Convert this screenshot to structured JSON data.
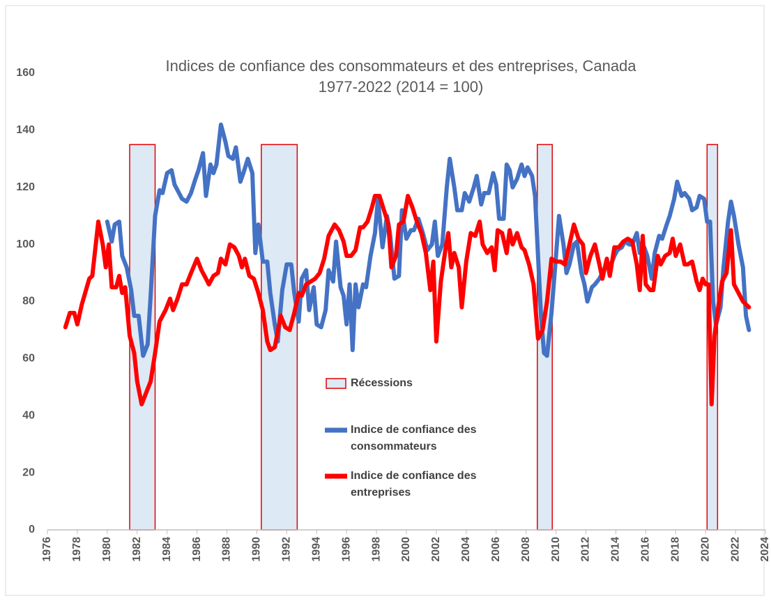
{
  "chart_data": {
    "type": "line",
    "title": "Indices de confiance des consommateurs et des entreprises, Canada",
    "subtitle": "1977-2022 (2014 = 100)",
    "xlim": [
      1976,
      2024
    ],
    "xticks": [
      1976,
      1978,
      1980,
      1982,
      1984,
      1986,
      1988,
      1990,
      1992,
      1994,
      1996,
      1998,
      2000,
      2002,
      2004,
      2006,
      2008,
      2010,
      2012,
      2014,
      2016,
      2018,
      2020,
      2022,
      2024
    ],
    "ylim": [
      0,
      160
    ],
    "yticks": [
      0,
      20,
      40,
      60,
      80,
      100,
      120,
      140,
      160
    ],
    "grid": false,
    "recessions": {
      "name": "Récessions",
      "color": "#e00000",
      "fill": "#dde9f5",
      "height": 135,
      "periods": [
        [
          1981.5,
          1983.2
        ],
        [
          1990.3,
          1992.7
        ],
        [
          2008.75,
          2009.75
        ],
        [
          2020.1,
          2020.8
        ]
      ]
    },
    "series": [
      {
        "name": "Indice de confiance des consommateurs",
        "color": "#4472c4",
        "x": [
          1980.0,
          1980.3,
          1980.5,
          1980.8,
          1981.0,
          1981.3,
          1981.6,
          1981.8,
          1982.1,
          1982.4,
          1982.7,
          1982.9,
          1983.2,
          1983.5,
          1983.7,
          1984.0,
          1984.3,
          1984.5,
          1984.8,
          1985.0,
          1985.3,
          1985.6,
          1985.9,
          1986.1,
          1986.4,
          1986.6,
          1986.9,
          1987.1,
          1987.3,
          1987.6,
          1987.9,
          1988.1,
          1988.4,
          1988.6,
          1988.9,
          1989.1,
          1989.4,
          1989.7,
          1989.9,
          1990.1,
          1990.4,
          1990.7,
          1990.9,
          1991.2,
          1991.4,
          1991.7,
          1992.0,
          1992.3,
          1992.5,
          1992.8,
          1993.0,
          1993.3,
          1993.5,
          1993.8,
          1994.0,
          1994.3,
          1994.6,
          1994.8,
          1995.1,
          1995.3,
          1995.6,
          1995.8,
          1996.0,
          1996.2,
          1996.4,
          1996.6,
          1996.8,
          1997.1,
          1997.3,
          1997.6,
          1997.9,
          1998.1,
          1998.4,
          1998.7,
          1998.9,
          1999.2,
          1999.5,
          1999.7,
          2000.0,
          2000.3,
          2000.5,
          2000.8,
          2001.1,
          2001.4,
          2001.7,
          2001.9,
          2002.1,
          2002.4,
          2002.7,
          2002.9,
          2003.2,
          2003.4,
          2003.7,
          2003.9,
          2004.2,
          2004.5,
          2004.7,
          2005.0,
          2005.2,
          2005.5,
          2005.8,
          2006.0,
          2006.2,
          2006.5,
          2006.7,
          2006.9,
          2007.1,
          2007.4,
          2007.7,
          2007.9,
          2008.1,
          2008.4,
          2008.6,
          2008.8,
          2009.0,
          2009.2,
          2009.4,
          2009.7,
          2010.0,
          2010.2,
          2010.5,
          2010.7,
          2010.9,
          2011.2,
          2011.4,
          2011.7,
          2011.9,
          2012.1,
          2012.4,
          2012.6,
          2012.9,
          2013.1,
          2013.4,
          2013.6,
          2013.9,
          2014.1,
          2014.4,
          2014.6,
          2014.9,
          2015.1,
          2015.4,
          2015.6,
          2015.9,
          2016.1,
          2016.4,
          2016.6,
          2016.9,
          2017.1,
          2017.4,
          2017.6,
          2017.9,
          2018.1,
          2018.4,
          2018.6,
          2018.9,
          2019.1,
          2019.4,
          2019.6,
          2019.9,
          2020.1,
          2020.3,
          2020.5,
          2020.7,
          2021.0,
          2021.2,
          2021.5,
          2021.7,
          2021.9,
          2022.2,
          2022.5,
          2022.7,
          2022.9
        ],
        "values": [
          108,
          101,
          107,
          108,
          96,
          92,
          84,
          75,
          75,
          61,
          65,
          82,
          110,
          119,
          118,
          125,
          126,
          121,
          118,
          116,
          115,
          118,
          123,
          126,
          132,
          117,
          128,
          125,
          128,
          142,
          136,
          131,
          130,
          134,
          122,
          125,
          130,
          125,
          97,
          107,
          94,
          94,
          83,
          72,
          66,
          84,
          93,
          93,
          83,
          73,
          88,
          91,
          77,
          85,
          72,
          71,
          77,
          91,
          87,
          101,
          85,
          82,
          72,
          86,
          63,
          86,
          78,
          86,
          85,
          96,
          104,
          116,
          99,
          110,
          104,
          88,
          89,
          112,
          102,
          105,
          105,
          109,
          104,
          98,
          100,
          108,
          96,
          100,
          120,
          130,
          120,
          112,
          112,
          118,
          115,
          120,
          124,
          114,
          118,
          118,
          125,
          121,
          109,
          109,
          128,
          126,
          120,
          123,
          128,
          124,
          127,
          124,
          117,
          96,
          75,
          62,
          61,
          76,
          96,
          110,
          100,
          90,
          93,
          100,
          101,
          90,
          86,
          80,
          85,
          86,
          88,
          90,
          93,
          92,
          96,
          98,
          99,
          101,
          100,
          100,
          104,
          97,
          99,
          96,
          88,
          97,
          103,
          102,
          107,
          110,
          116,
          122,
          117,
          118,
          116,
          112,
          113,
          117,
          116,
          108,
          108,
          80,
          72,
          78,
          92,
          108,
          115,
          110,
          100,
          92,
          75,
          70
        ]
      },
      {
        "name": "Indice de confiance des entreprises",
        "color": "#ff0000",
        "x": [
          1977.2,
          1977.5,
          1977.8,
          1978.0,
          1978.3,
          1978.8,
          1979.0,
          1979.4,
          1979.7,
          1979.9,
          1980.1,
          1980.3,
          1980.6,
          1980.8,
          1981.0,
          1981.2,
          1981.5,
          1981.8,
          1982.0,
          1982.3,
          1982.6,
          1982.9,
          1983.2,
          1983.5,
          1983.9,
          1984.2,
          1984.4,
          1984.7,
          1985.0,
          1985.3,
          1985.6,
          1986.0,
          1986.3,
          1986.6,
          1986.8,
          1987.1,
          1987.4,
          1987.6,
          1987.9,
          1988.2,
          1988.5,
          1988.8,
          1989.0,
          1989.2,
          1989.5,
          1989.8,
          1990.1,
          1990.4,
          1990.7,
          1990.9,
          1991.2,
          1991.6,
          1991.9,
          1992.2,
          1992.5,
          1992.8,
          1993.0,
          1993.3,
          1993.6,
          1993.9,
          1994.2,
          1994.5,
          1994.8,
          1995.2,
          1995.5,
          1995.8,
          1996.0,
          1996.3,
          1996.6,
          1996.9,
          1997.1,
          1997.4,
          1997.7,
          1997.9,
          1998.2,
          1998.5,
          1998.8,
          1999.0,
          1999.3,
          1999.5,
          1999.8,
          2000.1,
          2000.4,
          2000.7,
          2001.0,
          2001.3,
          2001.6,
          2001.8,
          2002.0,
          2002.3,
          2002.6,
          2002.8,
          2003.0,
          2003.2,
          2003.5,
          2003.7,
          2004.0,
          2004.3,
          2004.6,
          2004.9,
          2005.1,
          2005.4,
          2005.7,
          2005.9,
          2006.1,
          2006.4,
          2006.7,
          2006.9,
          2007.1,
          2007.4,
          2007.7,
          2007.9,
          2008.2,
          2008.5,
          2008.8,
          2009.1,
          2009.4,
          2009.7,
          2010.0,
          2010.3,
          2010.6,
          2010.9,
          2011.2,
          2011.5,
          2011.8,
          2012.0,
          2012.3,
          2012.6,
          2012.9,
          2013.1,
          2013.4,
          2013.6,
          2013.9,
          2014.2,
          2014.5,
          2014.8,
          2015.1,
          2015.4,
          2015.6,
          2015.8,
          2016.0,
          2016.3,
          2016.5,
          2016.8,
          2017.0,
          2017.3,
          2017.6,
          2017.8,
          2018.0,
          2018.3,
          2018.6,
          2018.8,
          2019.1,
          2019.4,
          2019.6,
          2019.8,
          2020.0,
          2020.2,
          2020.4,
          2020.6,
          2020.9,
          2021.1,
          2021.4,
          2021.7,
          2021.9,
          2022.2,
          2022.5,
          2022.9
        ],
        "values": [
          71,
          76,
          76,
          72,
          79,
          88,
          89,
          108,
          100,
          92,
          100,
          85,
          85,
          89,
          83,
          85,
          68,
          62,
          52,
          44,
          48,
          52,
          62,
          73,
          77,
          81,
          77,
          81,
          86,
          86,
          90,
          95,
          91,
          88,
          86,
          89,
          90,
          95,
          93,
          100,
          99,
          96,
          92,
          95,
          89,
          88,
          83,
          77,
          66,
          63,
          64,
          75,
          71,
          70,
          76,
          83,
          82,
          86,
          87,
          88,
          90,
          95,
          103,
          107,
          105,
          101,
          96,
          96,
          98,
          106,
          106,
          108,
          113,
          117,
          117,
          112,
          107,
          92,
          96,
          107,
          108,
          117,
          113,
          108,
          104,
          97,
          84,
          94,
          66,
          87,
          98,
          104,
          92,
          97,
          92,
          78,
          94,
          104,
          103,
          108,
          100,
          97,
          99,
          91,
          105,
          104,
          97,
          105,
          100,
          104,
          99,
          98,
          93,
          86,
          67,
          70,
          80,
          95,
          94,
          94,
          93,
          100,
          107,
          102,
          100,
          90,
          96,
          100,
          93,
          88,
          95,
          89,
          99,
          99,
          101,
          102,
          101,
          93,
          84,
          103,
          86,
          84,
          84,
          96,
          93,
          96,
          97,
          102,
          96,
          100,
          93,
          93,
          94,
          87,
          84,
          88,
          86,
          86,
          44,
          68,
          80,
          87,
          90,
          105,
          86,
          83,
          80,
          78
        ]
      }
    ]
  }
}
